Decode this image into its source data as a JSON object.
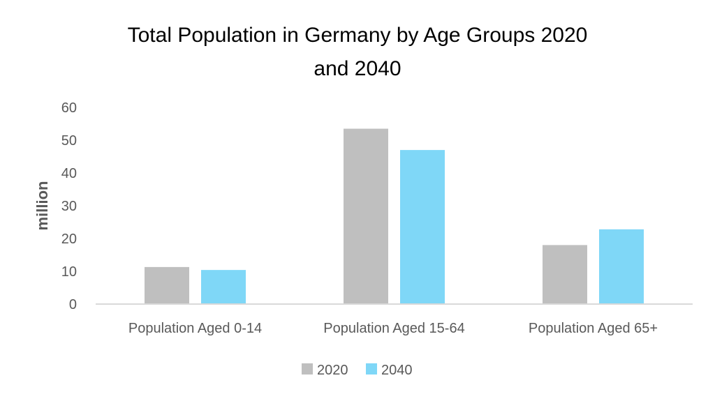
{
  "chart_data": {
    "type": "bar",
    "title": "Total Population in Germany by Age Groups 2020",
    "title_line2": "and 2040",
    "ylabel": "million",
    "xlabel": "",
    "ylim": [
      0,
      60
    ],
    "yticks": [
      0,
      10,
      20,
      30,
      40,
      50,
      60
    ],
    "categories": [
      "Population Aged 0-14",
      "Population Aged 15-64",
      "Population Aged 65+"
    ],
    "series": [
      {
        "name": "2020",
        "color": "#bfbfbf",
        "values": [
          11.3,
          53.5,
          18.0
        ]
      },
      {
        "name": "2040",
        "color": "#7fd7f7",
        "values": [
          10.4,
          47.0,
          22.8
        ]
      }
    ],
    "grid": false,
    "legend": "bottom"
  }
}
